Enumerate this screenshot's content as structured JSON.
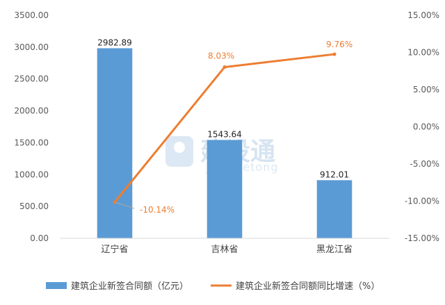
{
  "chart_data": {
    "type": "bar",
    "categories": [
      "辽宁省",
      "吉林省",
      "黑龙江省"
    ],
    "series": [
      {
        "name": "建筑企业新签合同额（亿元）",
        "type": "bar",
        "axis": "left",
        "values": [
          2982.89,
          1543.64,
          912.01
        ],
        "labels": [
          "2982.89",
          "1543.64",
          "912.01"
        ],
        "color": "#5b9bd5"
      },
      {
        "name": "建筑企业新签合同额同比增速（%）",
        "type": "line",
        "axis": "right",
        "values": [
          -10.14,
          8.03,
          9.76
        ],
        "labels": [
          "-10.14%",
          "8.03%",
          "9.76%"
        ],
        "color": "#ed7d31"
      }
    ],
    "y_left": {
      "min": 0,
      "max": 3500,
      "step": 500,
      "ticks": [
        "0.00",
        "500.00",
        "1000.00",
        "1500.00",
        "2000.00",
        "2500.00",
        "3000.00",
        "3500.00"
      ]
    },
    "y_right": {
      "min": -15,
      "max": 15,
      "step": 5,
      "ticks": [
        "-15.00%",
        "-10.00%",
        "-5.00%",
        "0.00%",
        "5.00%",
        "10.00%",
        "15.00%"
      ]
    },
    "grid": false,
    "legend": "bottom"
  },
  "watermark": {
    "brand": "建设通",
    "sub": "jianshetong"
  }
}
